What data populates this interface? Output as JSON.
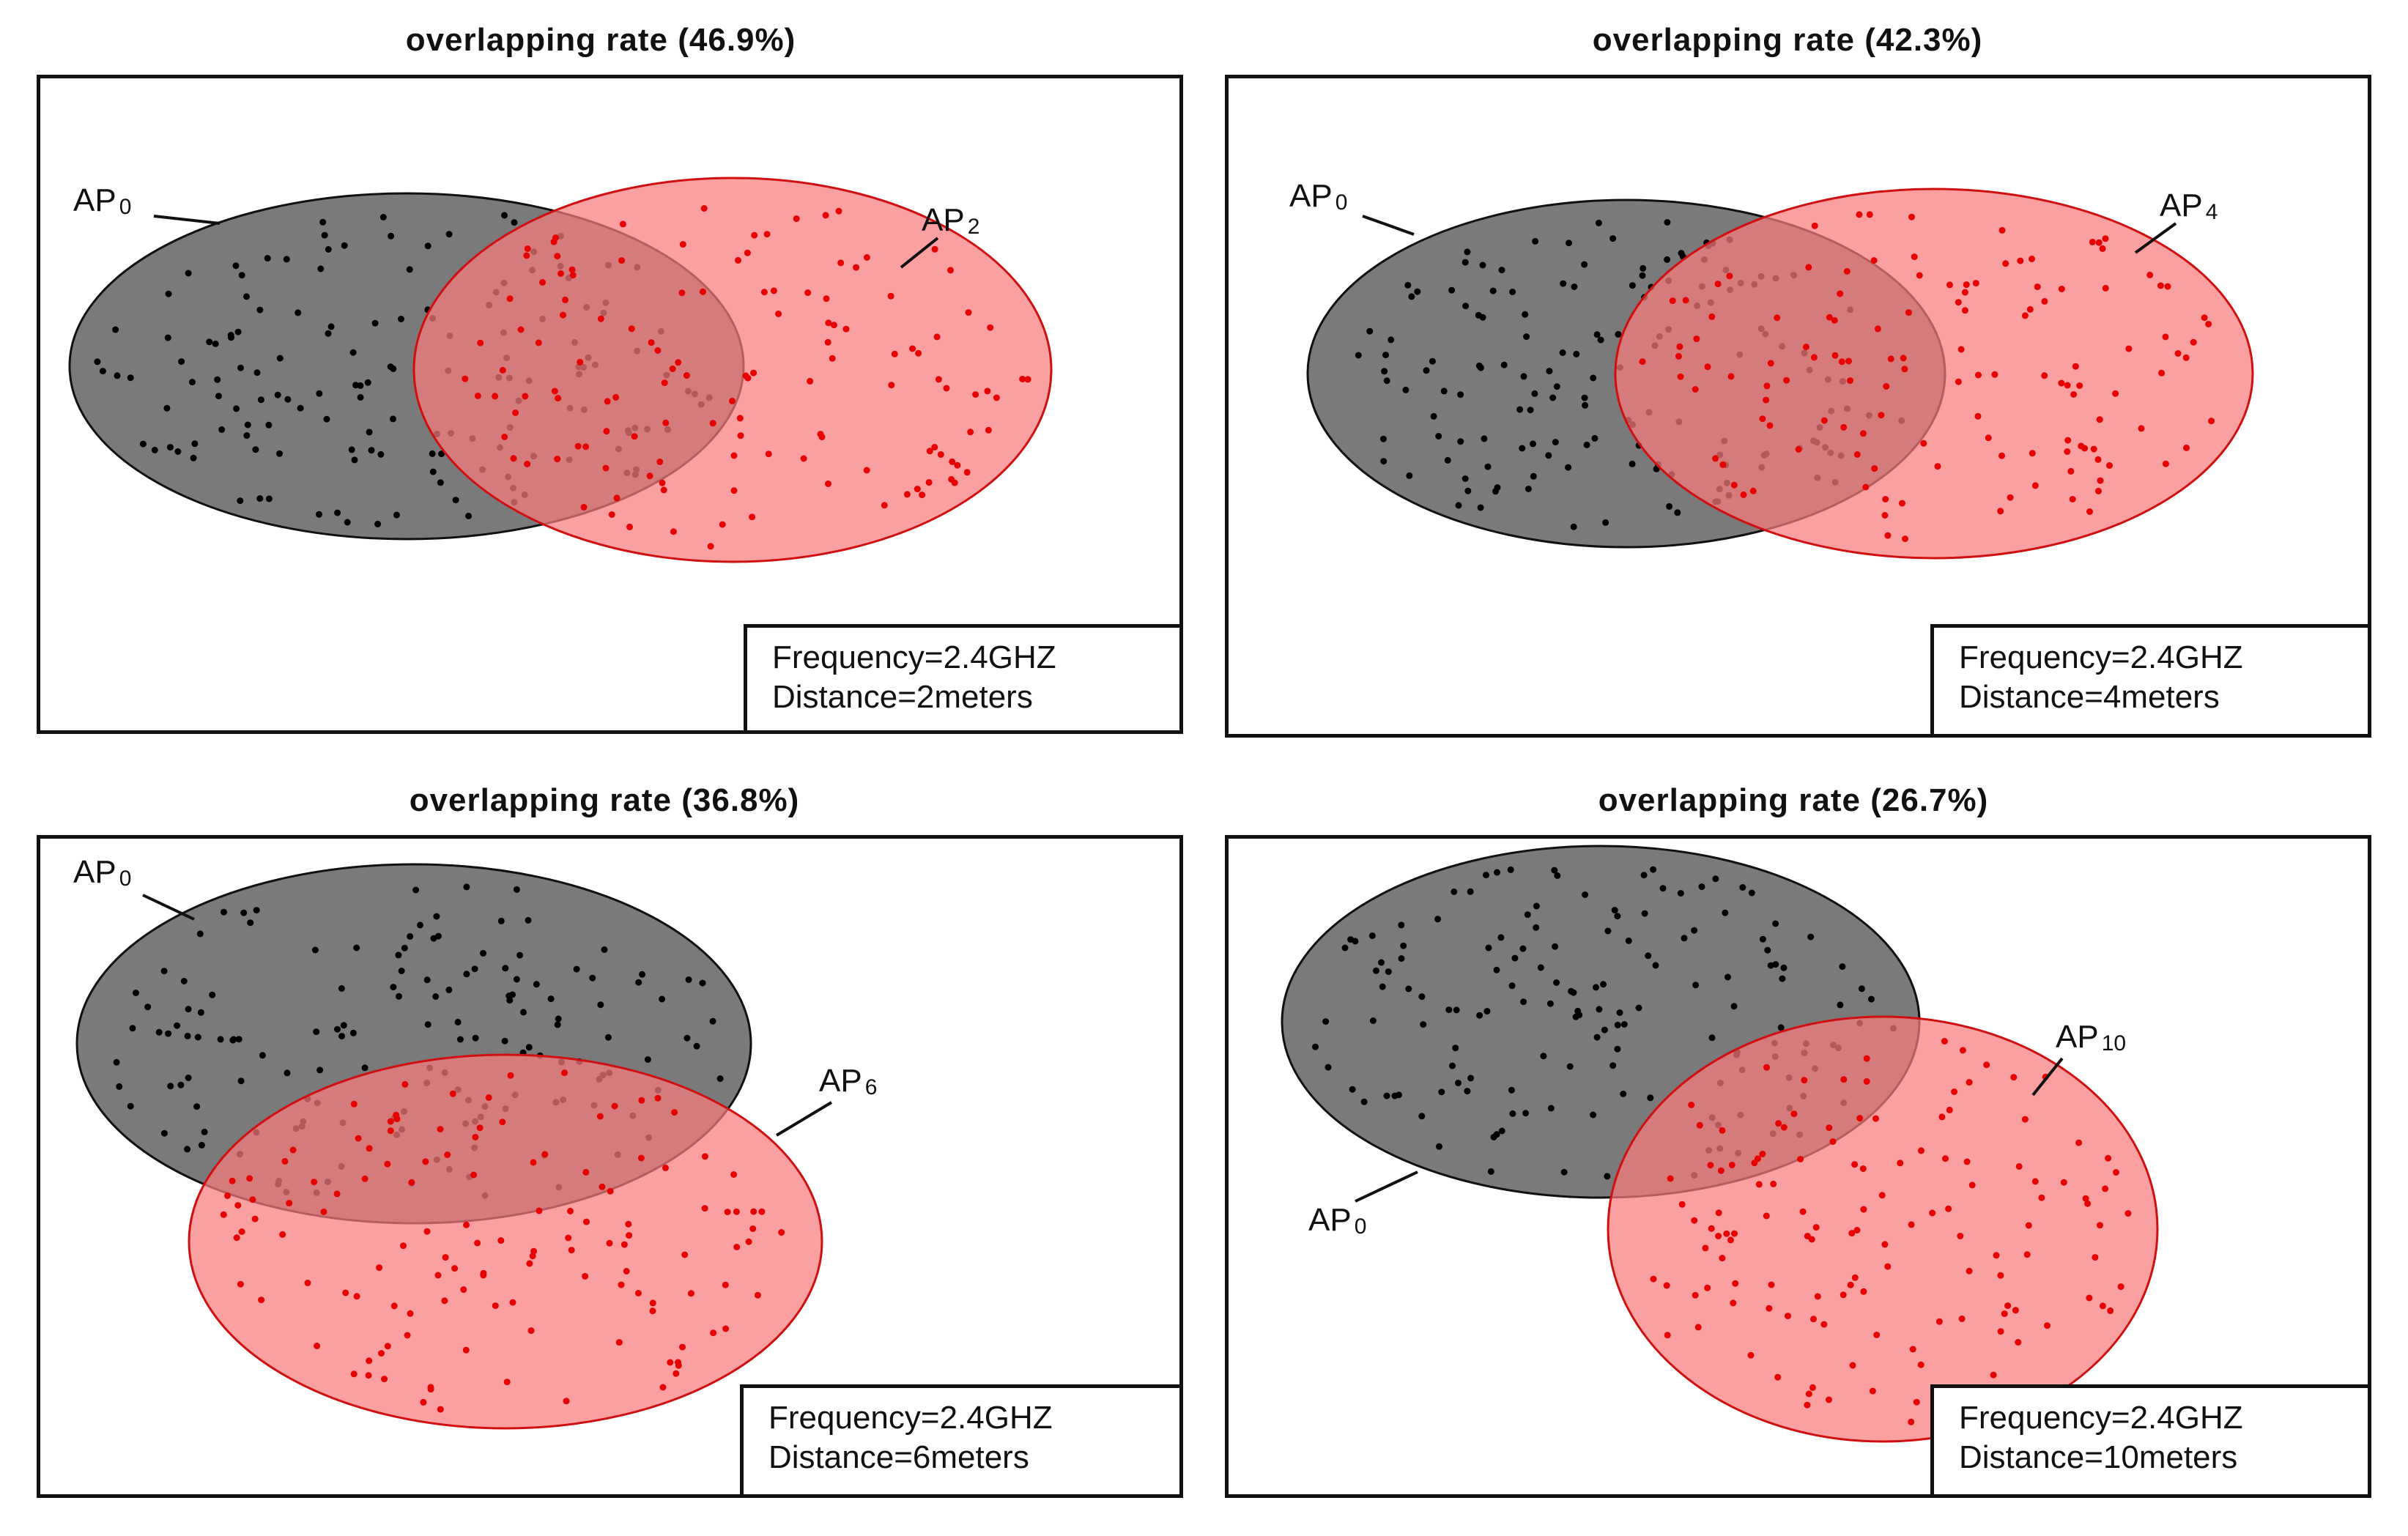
{
  "figure": {
    "panels": [
      {
        "title": "overlapping rate  (46.9%)",
        "rate": 46.9,
        "label_a": "AP",
        "sub_a": "0",
        "label_b": "AP",
        "sub_b": "2",
        "frequency": "Frequency=2.4GHZ",
        "distance": "Distance=2meters"
      },
      {
        "title": "overlapping rate  (42.3%)",
        "rate": 42.3,
        "label_a": "AP",
        "sub_a": "0",
        "label_b": "AP",
        "sub_b": "4",
        "frequency": "Frequency=2.4GHZ",
        "distance": "Distance=4meters"
      },
      {
        "title": "overlapping rate  (36.8%)",
        "rate": 36.8,
        "label_a": "AP",
        "sub_a": "0",
        "label_b": "AP",
        "sub_b": "6",
        "frequency": "Frequency=2.4GHZ",
        "distance": "Distance=6meters"
      },
      {
        "title": "overlapping rate  (26.7%)",
        "rate": 26.7,
        "label_a": "AP",
        "sub_a": "0",
        "label_b": "AP",
        "sub_b": "10",
        "frequency": "Frequency=2.4GHZ",
        "distance": "Distance=10meters"
      }
    ],
    "colors": {
      "ap0_fill": "#7a7a7a",
      "ap0_stroke": "#111111",
      "apx_fill": "#f97b7b",
      "apx_stroke": "#d01010",
      "black_dot": "#000000",
      "red_dot": "#e60000"
    }
  }
}
